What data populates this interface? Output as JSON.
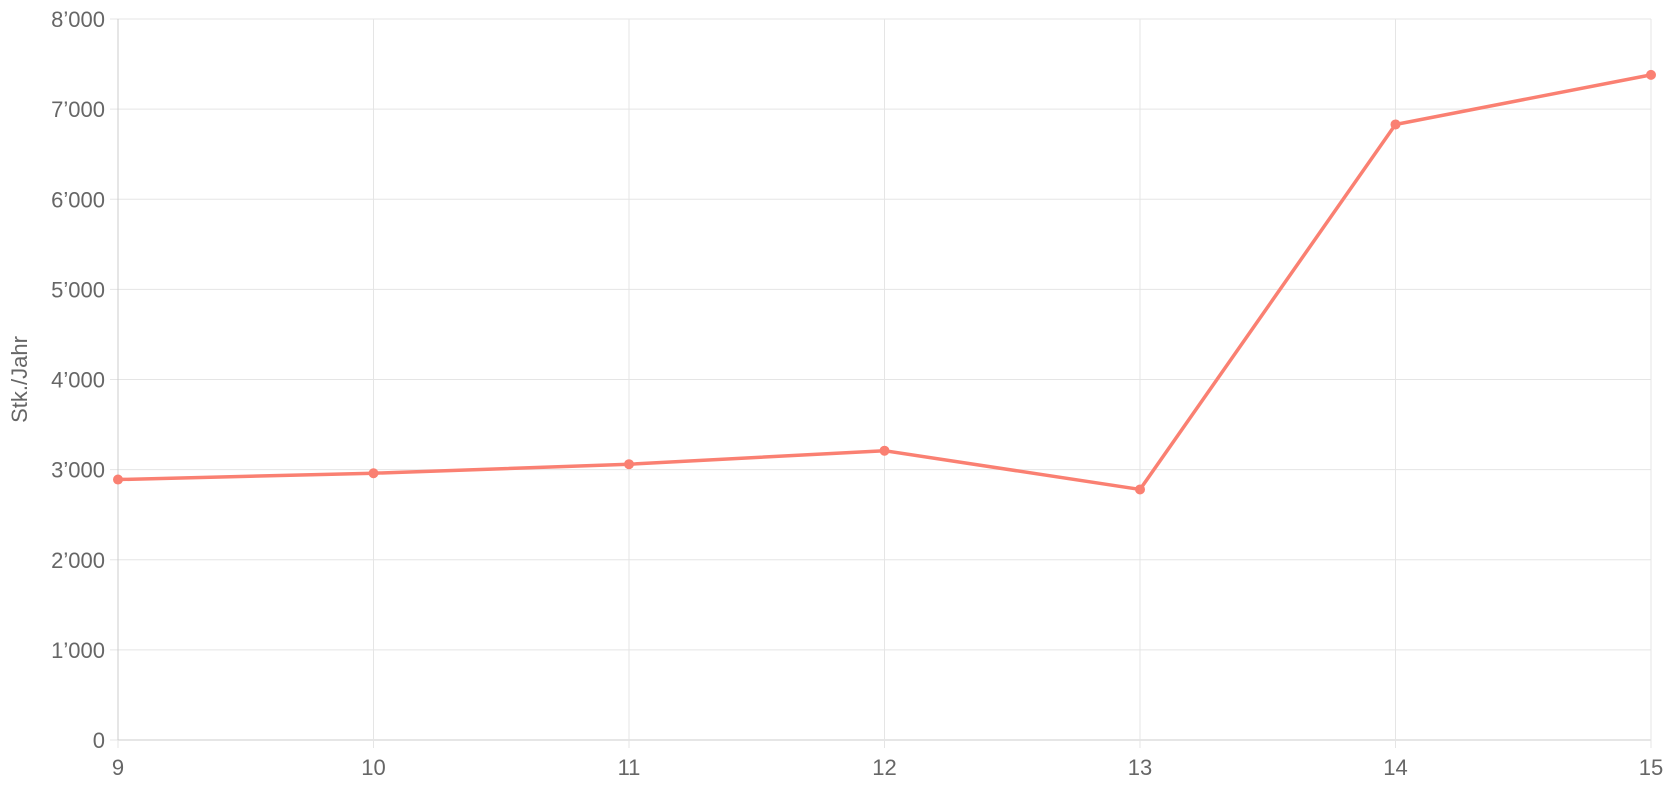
{
  "chart_data": {
    "type": "line",
    "title": "",
    "xlabel": "",
    "ylabel": "Stk./Jahr",
    "x": [
      9,
      10,
      11,
      12,
      13,
      14,
      15
    ],
    "x_tick_labels": [
      "9",
      "10",
      "11",
      "12",
      "13",
      "14",
      "15"
    ],
    "y_tick_labels": [
      "0",
      "1’000",
      "2’000",
      "3’000",
      "4’000",
      "5’000",
      "6’000",
      "7’000",
      "8’000"
    ],
    "y_ticks": [
      0,
      1000,
      2000,
      3000,
      4000,
      5000,
      6000,
      7000,
      8000
    ],
    "ylim": [
      0,
      8000
    ],
    "xlim": [
      9,
      15
    ],
    "grid": true,
    "legend": "none",
    "series": [
      {
        "values": [
          2890,
          2960,
          3060,
          3210,
          2780,
          6830,
          7380
        ],
        "color": "#fa8072"
      }
    ]
  }
}
